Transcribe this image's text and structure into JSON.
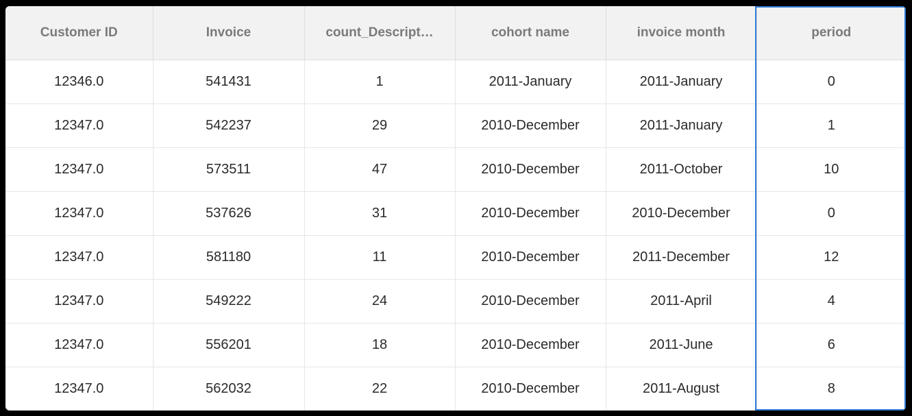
{
  "table": {
    "columns": [
      "Customer ID",
      "Invoice",
      "count_Descript…",
      "cohort name",
      "invoice month",
      "period"
    ],
    "rows": [
      [
        "12346.0",
        "541431",
        "1",
        "2011-January",
        "2011-January",
        "0"
      ],
      [
        "12347.0",
        "542237",
        "29",
        "2010-December",
        "2011-January",
        "1"
      ],
      [
        "12347.0",
        "573511",
        "47",
        "2010-December",
        "2011-October",
        "10"
      ],
      [
        "12347.0",
        "537626",
        "31",
        "2010-December",
        "2010-December",
        "0"
      ],
      [
        "12347.0",
        "581180",
        "11",
        "2010-December",
        "2011-December",
        "12"
      ],
      [
        "12347.0",
        "549222",
        "24",
        "2010-December",
        "2011-April",
        "4"
      ],
      [
        "12347.0",
        "556201",
        "18",
        "2010-December",
        "2011-June",
        "6"
      ],
      [
        "12347.0",
        "562032",
        "22",
        "2010-December",
        "2011-August",
        "8"
      ]
    ],
    "selected_column": "period"
  },
  "colors": {
    "selection_border": "#2f7ad6",
    "header_bg": "#f2f2f2"
  }
}
